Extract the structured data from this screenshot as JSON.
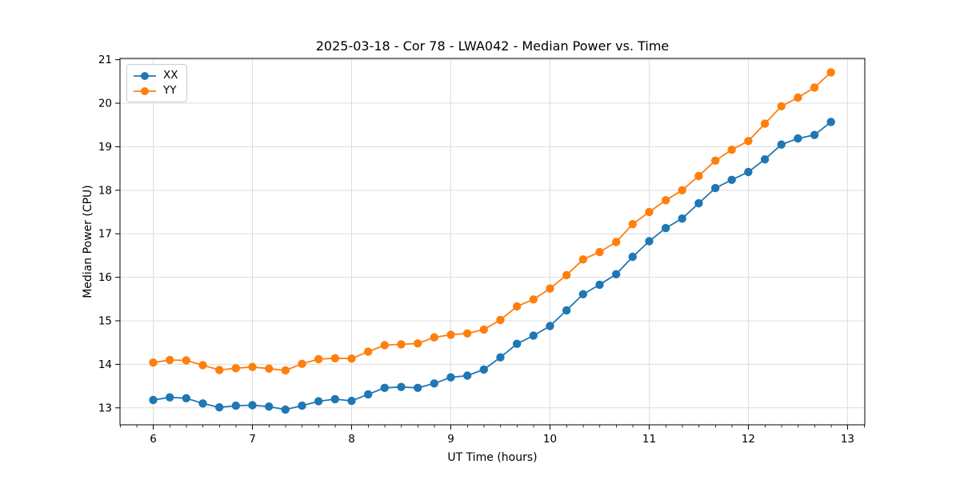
{
  "chart_data": {
    "type": "line",
    "title": "2025-03-18 - Cor 78 - LWA042 - Median Power vs. Time",
    "xlabel": "UT Time (hours)",
    "ylabel": "Median Power (CPU)",
    "xlim": [
      5.665,
      13.174
    ],
    "ylim": [
      12.61,
      21.03
    ],
    "xticks": [
      6,
      7,
      8,
      9,
      10,
      11,
      12,
      13
    ],
    "yticks": [
      13,
      14,
      15,
      16,
      17,
      18,
      19,
      20,
      21
    ],
    "x_minor_tick_step": 0.1667,
    "grid": true,
    "grid_color": "#dddddd",
    "legend_position": "upper-left",
    "x": [
      6.0,
      6.167,
      6.333,
      6.5,
      6.667,
      6.833,
      7.0,
      7.167,
      7.333,
      7.5,
      7.667,
      7.833,
      8.0,
      8.167,
      8.333,
      8.5,
      8.667,
      8.833,
      9.0,
      9.167,
      9.333,
      9.5,
      9.667,
      9.833,
      10.0,
      10.167,
      10.333,
      10.5,
      10.667,
      10.833,
      11.0,
      11.167,
      11.333,
      11.5,
      11.667,
      11.833,
      12.0,
      12.167,
      12.333,
      12.5,
      12.667,
      12.833
    ],
    "series": [
      {
        "name": "XX",
        "color": "#1f77b4",
        "values": [
          13.18,
          13.24,
          13.22,
          13.1,
          13.01,
          13.05,
          13.06,
          13.03,
          12.96,
          13.05,
          13.15,
          13.2,
          13.16,
          13.31,
          13.46,
          13.48,
          13.46,
          13.56,
          13.7,
          13.74,
          13.88,
          14.16,
          14.47,
          14.66,
          14.88,
          15.24,
          15.61,
          15.83,
          16.07,
          16.47,
          16.83,
          17.13,
          17.35,
          17.7,
          18.05,
          18.24,
          18.42,
          18.71,
          19.05,
          19.19,
          19.27,
          19.57
        ]
      },
      {
        "name": "YY",
        "color": "#ff7f0e",
        "values": [
          14.04,
          14.1,
          14.09,
          13.98,
          13.87,
          13.91,
          13.94,
          13.9,
          13.86,
          14.01,
          14.12,
          14.14,
          14.13,
          14.29,
          14.44,
          14.46,
          14.48,
          14.62,
          14.68,
          14.71,
          14.8,
          15.02,
          15.33,
          15.49,
          15.74,
          16.05,
          16.41,
          16.58,
          16.81,
          17.22,
          17.5,
          17.77,
          18.0,
          18.33,
          18.68,
          18.93,
          19.13,
          19.53,
          19.93,
          20.13,
          20.36,
          20.71
        ]
      }
    ]
  }
}
